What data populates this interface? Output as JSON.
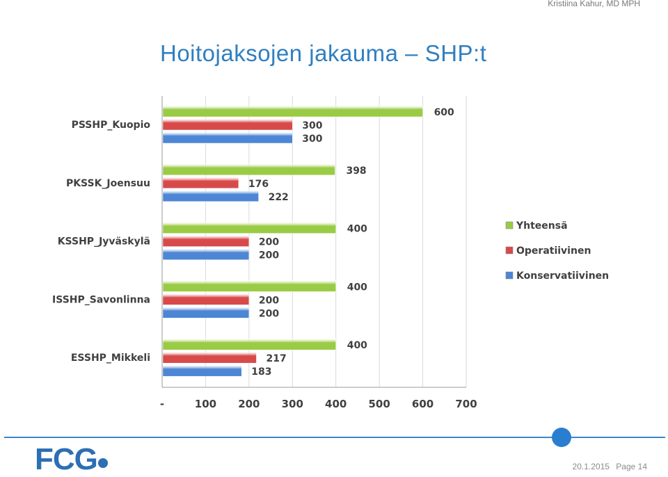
{
  "header": {
    "author": "Kristiina Kahur, MD MPH",
    "title": "Hoitojaksojen jakauma – SHP:t"
  },
  "footer": {
    "logo": "FCG",
    "date": "20.1.2015",
    "page": "Page 14"
  },
  "colors": {
    "Yhteensä": "#9acb45",
    "Operatiivinen": "#d84a4a",
    "Konservatiivinen": "#4d86d4"
  },
  "chart_data": {
    "type": "bar",
    "orientation": "horizontal",
    "categories": [
      "PSSHP_Kuopio",
      "PKSSK_Joensuu",
      "KSSHP_Jyväskylä",
      "ISSHP_Savonlinna",
      "ESSHP_Mikkeli"
    ],
    "series": [
      {
        "name": "Yhteensä",
        "values": [
          600,
          398,
          400,
          400,
          400
        ]
      },
      {
        "name": "Operatiivinen",
        "values": [
          300,
          176,
          200,
          200,
          217
        ]
      },
      {
        "name": "Konservatiivinen",
        "values": [
          300,
          222,
          200,
          200,
          183
        ]
      }
    ],
    "xlim": [
      0,
      700
    ],
    "xticks": [
      "-",
      "100",
      "200",
      "300",
      "400",
      "500",
      "600",
      "700"
    ],
    "grid": true,
    "legend": "right"
  }
}
